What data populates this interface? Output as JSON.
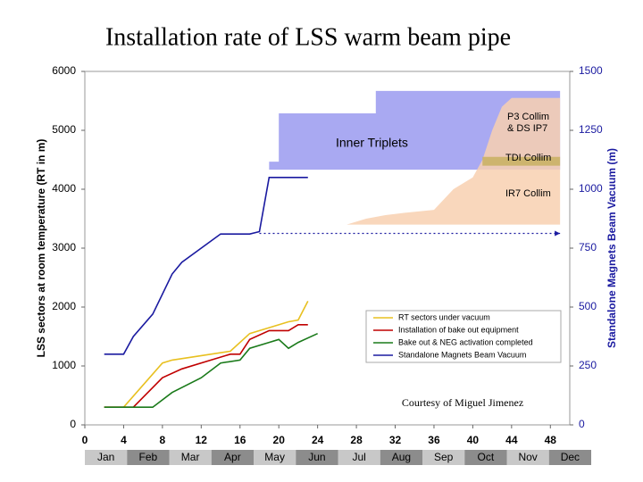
{
  "chart_data": {
    "type": "line",
    "title": "Installation rate of LSS warm beam pipe",
    "ylabel": "LSS sectors at room temperature (RT in m)",
    "y2label": "Standalone Magnets Beam Vacuum (m)",
    "xlim": [
      0,
      50
    ],
    "xticks": [
      0,
      4,
      8,
      12,
      16,
      20,
      24,
      28,
      32,
      36,
      40,
      44,
      48
    ],
    "ylim": [
      0,
      6000
    ],
    "yticks": [
      0,
      1000,
      2000,
      3000,
      4000,
      5000,
      6000
    ],
    "y2lim": [
      0,
      1500
    ],
    "y2ticks": [
      0,
      250,
      500,
      750,
      1000,
      1250,
      1500
    ],
    "months": [
      "Jan",
      "Feb",
      "Mar",
      "Apr",
      "May",
      "Jun",
      "Jul",
      "Aug",
      "Sep",
      "Oct",
      "Nov",
      "Dec"
    ],
    "series": [
      {
        "name": "RT sectors under vacuum",
        "color": "#e8c020",
        "x": [
          2,
          4,
          8,
          9,
          13,
          15,
          17,
          19,
          21,
          22,
          23
        ],
        "values": [
          300,
          300,
          1050,
          1100,
          1200,
          1250,
          1550,
          1650,
          1750,
          1780,
          2100
        ]
      },
      {
        "name": "Installation of bake out equipment",
        "color": "#c00000",
        "x": [
          2,
          5,
          8,
          10,
          13,
          15,
          16,
          17,
          19,
          21,
          22,
          23
        ],
        "values": [
          300,
          300,
          800,
          950,
          1100,
          1200,
          1200,
          1450,
          1600,
          1600,
          1700,
          1700
        ]
      },
      {
        "name": "Bake out & NEG activation completed",
        "color": "#1a7a1a",
        "x": [
          2,
          7,
          9,
          12,
          14,
          16,
          17,
          19,
          20,
          21,
          22,
          24
        ],
        "values": [
          300,
          300,
          550,
          800,
          1050,
          1100,
          1300,
          1400,
          1450,
          1300,
          1400,
          1550
        ]
      },
      {
        "name": "Standalone Magnets Beam Vacuum",
        "color": "#1a1aa0",
        "axis": "y2",
        "x": [
          2,
          4,
          5,
          7,
          9,
          10,
          14,
          17,
          18,
          19,
          23
        ],
        "values": [
          300,
          300,
          375,
          470,
          640,
          690,
          810,
          810,
          820,
          1050,
          1050
        ]
      }
    ],
    "areas": [
      {
        "color": "#9a9af0",
        "axis": "y2",
        "x": [
          19,
          20,
          20,
          30,
          30,
          49
        ],
        "upper": [
          1117,
          1117,
          1322,
          1322,
          1417,
          1417
        ],
        "lower": [
          1083,
          1083,
          1083,
          1083,
          1083,
          1083
        ]
      },
      {
        "color": "#f8d0b0",
        "axis": "y",
        "x": [
          27,
          29,
          31,
          33,
          36,
          38,
          40,
          41,
          42,
          43,
          44,
          49
        ],
        "upper": [
          3400,
          3500,
          3560,
          3600,
          3650,
          4000,
          4200,
          4500,
          5000,
          5400,
          5550,
          5550
        ],
        "lower": [
          3400,
          3400,
          3400,
          3400,
          3400,
          3400,
          3400,
          3400,
          3400,
          3400,
          3400,
          3400
        ]
      },
      {
        "color": "#c8b060",
        "axis": "y",
        "x": [
          41,
          49
        ],
        "upper": [
          4550,
          4550
        ],
        "lower": [
          4400,
          4400
        ]
      }
    ],
    "reference_line": {
      "color": "#1a1aa0",
      "y": 3250,
      "x": [
        18,
        49
      ]
    },
    "annotations": [
      "Inner Triplets",
      "P3 Collim",
      "& DS IP7",
      "TDI Collim",
      "IR7 Collim",
      "Courtesy of Miguel Jimenez"
    ]
  }
}
